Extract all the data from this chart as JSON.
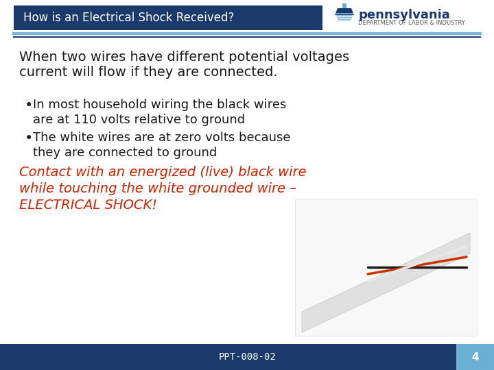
{
  "title_bar_text": "How is an Electrical Shock Received?",
  "title_bar_bg": "#1a3a6b",
  "title_bar_text_color": "#ffffff",
  "accent_line1_color": "#7ab4d8",
  "accent_line2_color": "#1a3a6b",
  "bg_color": "#ffffff",
  "footer_bg": "#1a3a6b",
  "footer_right_bg": "#6aafd4",
  "footer_text": "PPT-008-02",
  "footer_page": "4",
  "footer_text_color": "#ffffff",
  "body_text_color": "#1a1a1a",
  "red_text_color": "#cc2200",
  "intro_line1": "When two wires have different potential voltages",
  "intro_line2": "current will flow if they are connected.",
  "bullet1_line1": "In most household wiring the black wires",
  "bullet1_line2": "  are at 110 volts relative to ground",
  "bullet2_line1": "The white wires are at zero volts because",
  "bullet2_line2": "  they are connected to ground",
  "red_line1": "Contact with an energized (live) black wire",
  "red_line2": "while touching the white grounded wire –",
  "red_line3": "ELECTRICAL SHOCK!",
  "pa_text": "pennsylvania",
  "pa_sub": "DEPARTMENT OF LABOR & INDUSTRY",
  "intro_fontsize": 14,
  "bullet_fontsize": 13,
  "red_fontsize": 14,
  "title_fontsize": 12,
  "footer_fontsize": 10,
  "pa_fontsize": 13,
  "pa_sub_fontsize": 6
}
